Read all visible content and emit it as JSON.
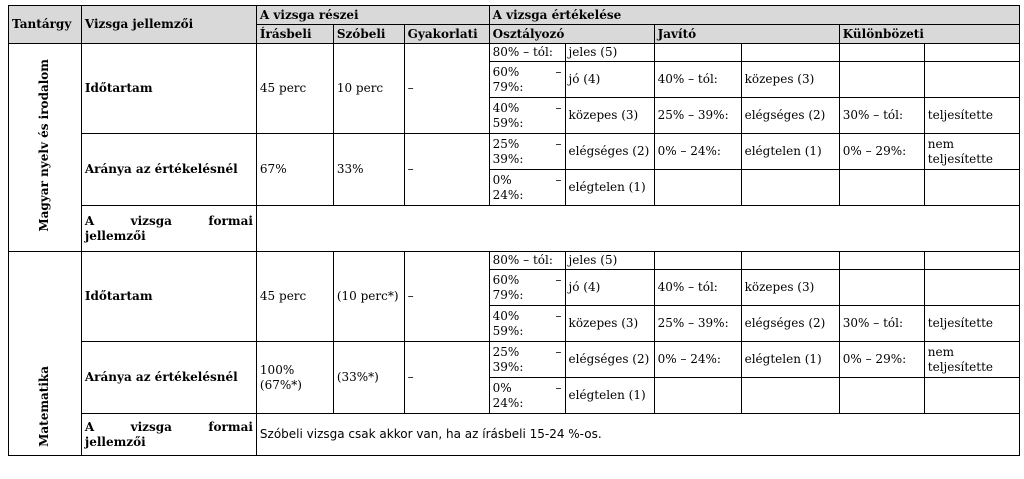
{
  "header": {
    "tantargy": "Tantárgy",
    "jellemzoi": "Vizsga jellemzői",
    "reszei": "A vizsga részei",
    "ertekelese": "A vizsga értékelése",
    "irasbeli": "Írásbeli",
    "szobeli": "Szóbeli",
    "gyakorlati": "Gyakorlati",
    "osztalyozo": "Osztályozó",
    "javito": "Javító",
    "kulonbozeti": "Különbözeti"
  },
  "sections": [
    {
      "subject": "Magyar nyelv és irodalom",
      "idotartam_label": "Időtartam",
      "idotartam_irasbeli": "45 perc",
      "idotartam_szobeli": "10 perc",
      "idotartam_gyakorlati": "–",
      "aranya_label": "Aránya az értékelésnél",
      "aranya_irasbeli": "67%",
      "aranya_szobeli": "33%",
      "aranya_gyakorlati": "–",
      "formai_w1": "A",
      "formai_w2": "vizsga",
      "formai_w3": "formai",
      "formai_w4": "jellemzői",
      "formai_value": "",
      "osztalyozo": [
        {
          "range_a": "80% – tól:",
          "range_b": "",
          "grade": "jeles (5)"
        },
        {
          "range_a": "60%",
          "range_b": "–",
          "range_c": "79%:",
          "grade": "jó (4)"
        },
        {
          "range_a": "40%",
          "range_b": "–",
          "range_c": "59%:",
          "grade": "közepes (3)"
        },
        {
          "range_a": "25%",
          "range_b": "–",
          "range_c": "39%:",
          "grade": "elégséges (2)"
        },
        {
          "range_a": "0%",
          "range_b": "–",
          "range_c": "24%:",
          "grade": "elégtelen (1)"
        }
      ],
      "javito": [
        {
          "range": "40% – tól:",
          "grade": "közepes (3)"
        },
        {
          "range": "25% – 39%:",
          "grade": "elégséges (2)"
        },
        {
          "range": "0% – 24%:",
          "grade": "elégtelen (1)"
        }
      ],
      "kulonbozeti": [
        {
          "range": "30% – tól:",
          "grade": "teljesítette"
        },
        {
          "range": "0% – 29%:",
          "grade": "nem teljesítette"
        }
      ]
    },
    {
      "subject": "Matematika",
      "idotartam_label": "Időtartam",
      "idotartam_irasbeli": "45 perc",
      "idotartam_szobeli": "(10 perc*)",
      "idotartam_gyakorlati": "–",
      "aranya_label": "Aránya az értékelésnél",
      "aranya_irasbeli": "100% (67%*)",
      "aranya_szobeli": "(33%*)",
      "aranya_gyakorlati": "–",
      "formai_w1": "A",
      "formai_w2": "vizsga",
      "formai_w3": "formai",
      "formai_w4": "jellemzői",
      "formai_value": "Szóbeli vizsga csak akkor van, ha az írásbeli 15-24 %-os.",
      "osztalyozo": [
        {
          "range_a": "80% – tól:",
          "range_b": "",
          "grade": "jeles (5)"
        },
        {
          "range_a": "60%",
          "range_b": "–",
          "range_c": "79%:",
          "grade": "jó (4)"
        },
        {
          "range_a": "40%",
          "range_b": "–",
          "range_c": "59%:",
          "grade": "közepes (3)"
        },
        {
          "range_a": "25%",
          "range_b": "–",
          "range_c": "39%:",
          "grade": "elégséges (2)"
        },
        {
          "range_a": "0%",
          "range_b": "–",
          "range_c": "24%:",
          "grade": "elégtelen (1)"
        }
      ],
      "javito": [
        {
          "range": "40% – tól:",
          "grade": "közepes (3)"
        },
        {
          "range": "25% – 39%:",
          "grade": "elégséges (2)"
        },
        {
          "range": "0% – 24%:",
          "grade": "elégtelen (1)"
        }
      ],
      "kulonbozeti": [
        {
          "range": "30% – tól:",
          "grade": "teljesítette"
        },
        {
          "range": "0% – 29%:",
          "grade": "nem teljesítette"
        }
      ]
    }
  ]
}
